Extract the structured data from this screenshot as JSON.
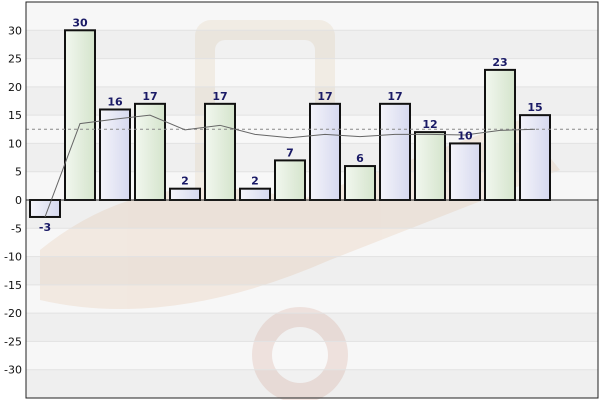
{
  "chart_data": {
    "type": "bar",
    "title": "",
    "xlabel": "",
    "ylabel": "",
    "ylim": [
      -35,
      35
    ],
    "yticks": [
      30,
      25,
      20,
      15,
      10,
      5,
      0,
      -5,
      -10,
      -15,
      -20,
      -25,
      -30
    ],
    "categories": [
      "",
      "",
      "",
      "",
      "",
      "",
      "",
      "",
      "",
      "",
      "",
      "",
      "",
      "",
      ""
    ],
    "values": [
      -3,
      30,
      16,
      17,
      2,
      17,
      2,
      7,
      17,
      6,
      17,
      12,
      10,
      23,
      15
    ],
    "moving_average": [
      -3,
      13.5,
      14.3,
      15,
      12.4,
      13.2,
      11.6,
      11,
      11.6,
      11.2,
      11.6,
      11.6,
      11.5,
      12.3,
      12.5
    ],
    "reference_line": 12.5,
    "grid": true,
    "legend": "none",
    "colors": {
      "bar_fill_a": "#dde0f0",
      "bar_fill_b": "#dde8d8",
      "bar_stroke": "#111111",
      "data_label": "#1a1a66",
      "trend_line": "#666666",
      "reference_line": "#888888",
      "band_light": "#f7f7f7",
      "band_dark": "#efefef"
    }
  }
}
